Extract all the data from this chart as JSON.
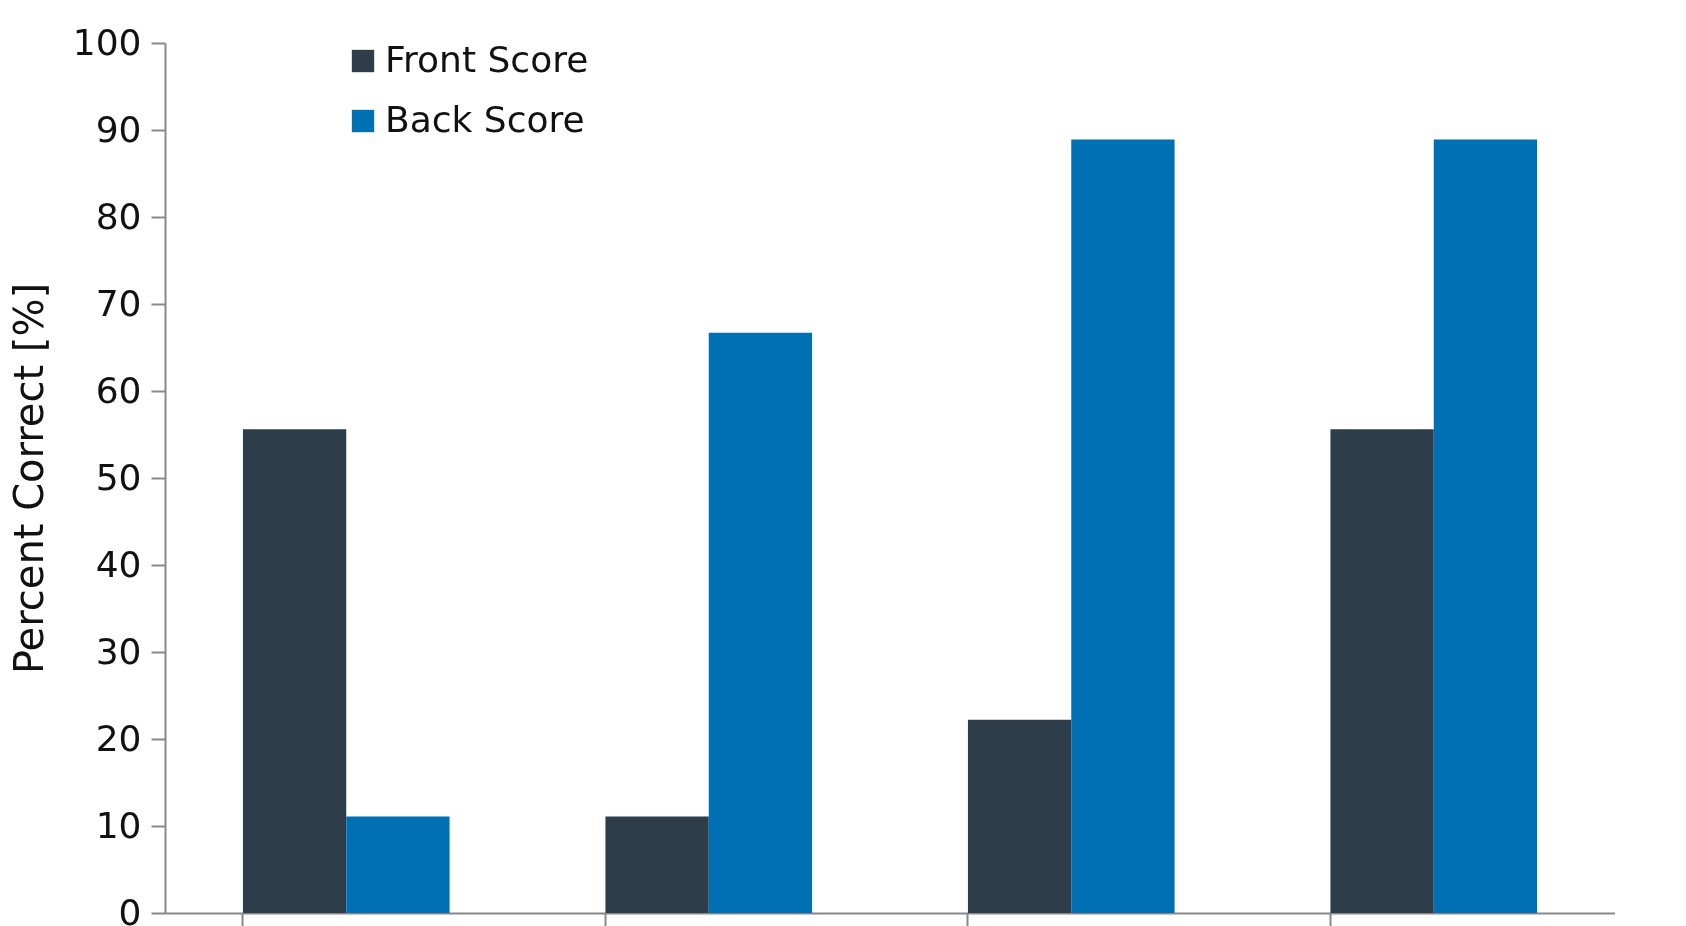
{
  "chart_data": {
    "type": "bar",
    "ylabel": "Percent Correct [%]",
    "categories": [
      null,
      null,
      null,
      null
    ],
    "series": [
      {
        "name": "Front Score",
        "color": "#2d3e4a",
        "values": [
          55.6,
          11.1,
          22.2,
          55.6
        ]
      },
      {
        "name": "Back Score",
        "color": "#0070b4",
        "values": [
          11.1,
          66.7,
          88.9,
          88.9
        ]
      }
    ],
    "ylim": [
      0,
      100
    ],
    "yticks": [
      0,
      10,
      20,
      30,
      40,
      50,
      60,
      70,
      80,
      90,
      100
    ],
    "legend": "top left",
    "tick_labels": "y"
  }
}
